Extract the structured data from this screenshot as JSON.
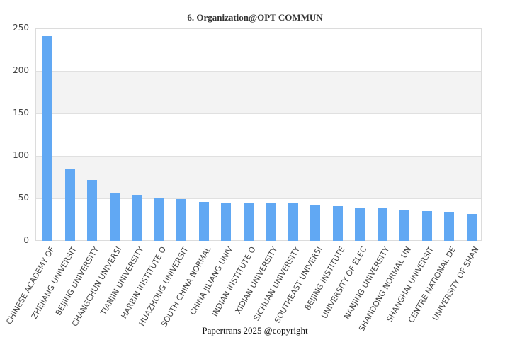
{
  "header": {
    "title": "6. Organization@OPT COMMUN"
  },
  "footer": {
    "text": "Papertrans 2025 @copyright"
  },
  "colors": {
    "bar": "#61a8f3",
    "band": "#f3f3f3",
    "grid": "#e0e0e0"
  },
  "chart_data": {
    "type": "bar",
    "title": "6. Organization@OPT COMMUN",
    "xlabel": "",
    "ylabel": "",
    "ylim": [
      0,
      250
    ],
    "yticks": [
      0,
      50,
      100,
      150,
      200,
      250
    ],
    "grid": true,
    "legend": null,
    "categories": [
      "CHINESE ACADEMY OF",
      "ZHEJIANG UNIVERSIT",
      "BEIJING UNIVERSITY",
      "CHANGCHUN UNIVERSI",
      "TIANJIN UNIVERSITY",
      "HARBIN INSTITUTE O",
      "HUAZHONG UNIVERSIT",
      "SOUTH CHINA NORMAL",
      "CHINA JILIANG UNIV",
      "INDIAN INSTITUTE O",
      "XIDIAN UNIVERSITY",
      "SICHUAN UNIVERSITY",
      "SOUTHEAST UNIVERSI",
      "BEIJING INSTITUTE",
      "UNIVERSITY OF ELEC",
      "NANJING UNIVERSITY",
      "SHANDONG NORMAL UN",
      "SHANGHAI UNIVERSIT",
      "CENTRE NATIONAL DE",
      "UNIVERSITY OF SHAN"
    ],
    "values": [
      241,
      85,
      72,
      56,
      54,
      50,
      49,
      46,
      45,
      45,
      45,
      44,
      42,
      41,
      39,
      38,
      37,
      35,
      33,
      32
    ]
  }
}
